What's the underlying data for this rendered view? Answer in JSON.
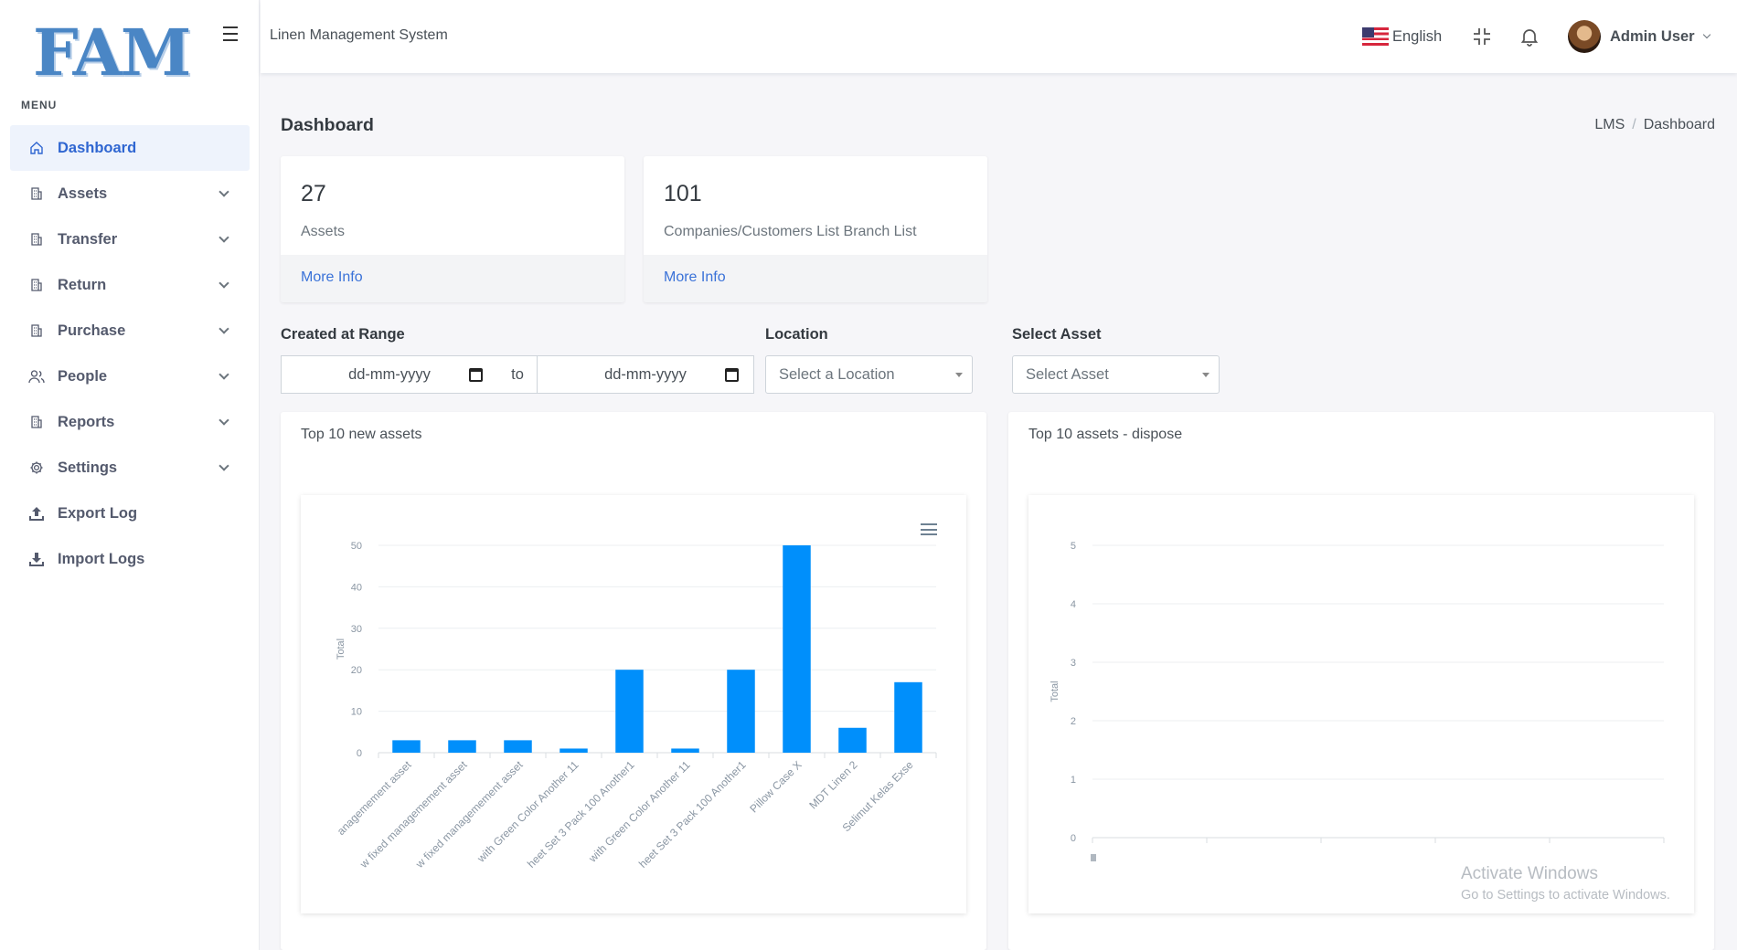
{
  "logo": "FAM",
  "sidebar": {
    "menu_title": "MENU",
    "items": [
      {
        "label": "Dashboard",
        "icon": "home-icon",
        "active": true,
        "chevron": false
      },
      {
        "label": "Assets",
        "icon": "building-icon",
        "chevron": true
      },
      {
        "label": "Transfer",
        "icon": "building-icon",
        "chevron": true
      },
      {
        "label": "Return",
        "icon": "building-icon",
        "chevron": true
      },
      {
        "label": "Purchase",
        "icon": "building-icon",
        "chevron": true
      },
      {
        "label": "People",
        "icon": "users-icon",
        "chevron": true
      },
      {
        "label": "Reports",
        "icon": "building-icon",
        "chevron": true
      },
      {
        "label": "Settings",
        "icon": "gear-icon",
        "chevron": true
      },
      {
        "label": "Export Log",
        "icon": "upload-icon",
        "chevron": false
      },
      {
        "label": "Import Logs",
        "icon": "download-icon",
        "chevron": false
      }
    ]
  },
  "header": {
    "app_name": "Linen Management System",
    "language": "English",
    "user_name": "Admin User"
  },
  "page": {
    "title": "Dashboard",
    "breadcrumb": [
      "LMS",
      "Dashboard"
    ]
  },
  "stats": [
    {
      "value": "27",
      "label": "Assets",
      "link": "More Info"
    },
    {
      "value": "101",
      "label": "Companies/Customers List Branch List",
      "link": "More Info"
    }
  ],
  "filters": {
    "date_label": "Created at Range",
    "date_from_placeholder": "dd-mm-yyyy",
    "to_label": "to",
    "date_to_placeholder": "dd-mm-yyyy",
    "location_label": "Location",
    "location_placeholder": "Select a Location",
    "asset_label": "Select Asset",
    "asset_placeholder": "Select Asset"
  },
  "chart_data": [
    {
      "type": "bar",
      "title": "Top 10 new assets",
      "ylabel": "Total",
      "ylim": [
        0,
        50
      ],
      "yticks": [
        0,
        10,
        20,
        30,
        40,
        50
      ],
      "color": "#008ffb",
      "categories": [
        "anagemement asset",
        "w fixed managemement asset",
        "w fixed managemement asset",
        "with Green Color Another 11",
        "heet Set 3 Pack 100 Another1",
        "with Green Color Another 11",
        "heet Set 3 Pack 100 Another1",
        "Pillow Case X",
        "MDT Linen 2",
        "Selimut Kelas Exse"
      ],
      "values": [
        3,
        3,
        3,
        1,
        20,
        1,
        20,
        50,
        6,
        17
      ]
    },
    {
      "type": "bar",
      "title": "Top 10 assets - dispose",
      "ylabel": "Total",
      "ylim": [
        0,
        5
      ],
      "yticks": [
        0,
        1,
        2,
        3,
        4,
        5
      ],
      "categories": [],
      "values": []
    }
  ],
  "watermark": {
    "line1": "Activate Windows",
    "line2": "Go to Settings to activate Windows."
  }
}
